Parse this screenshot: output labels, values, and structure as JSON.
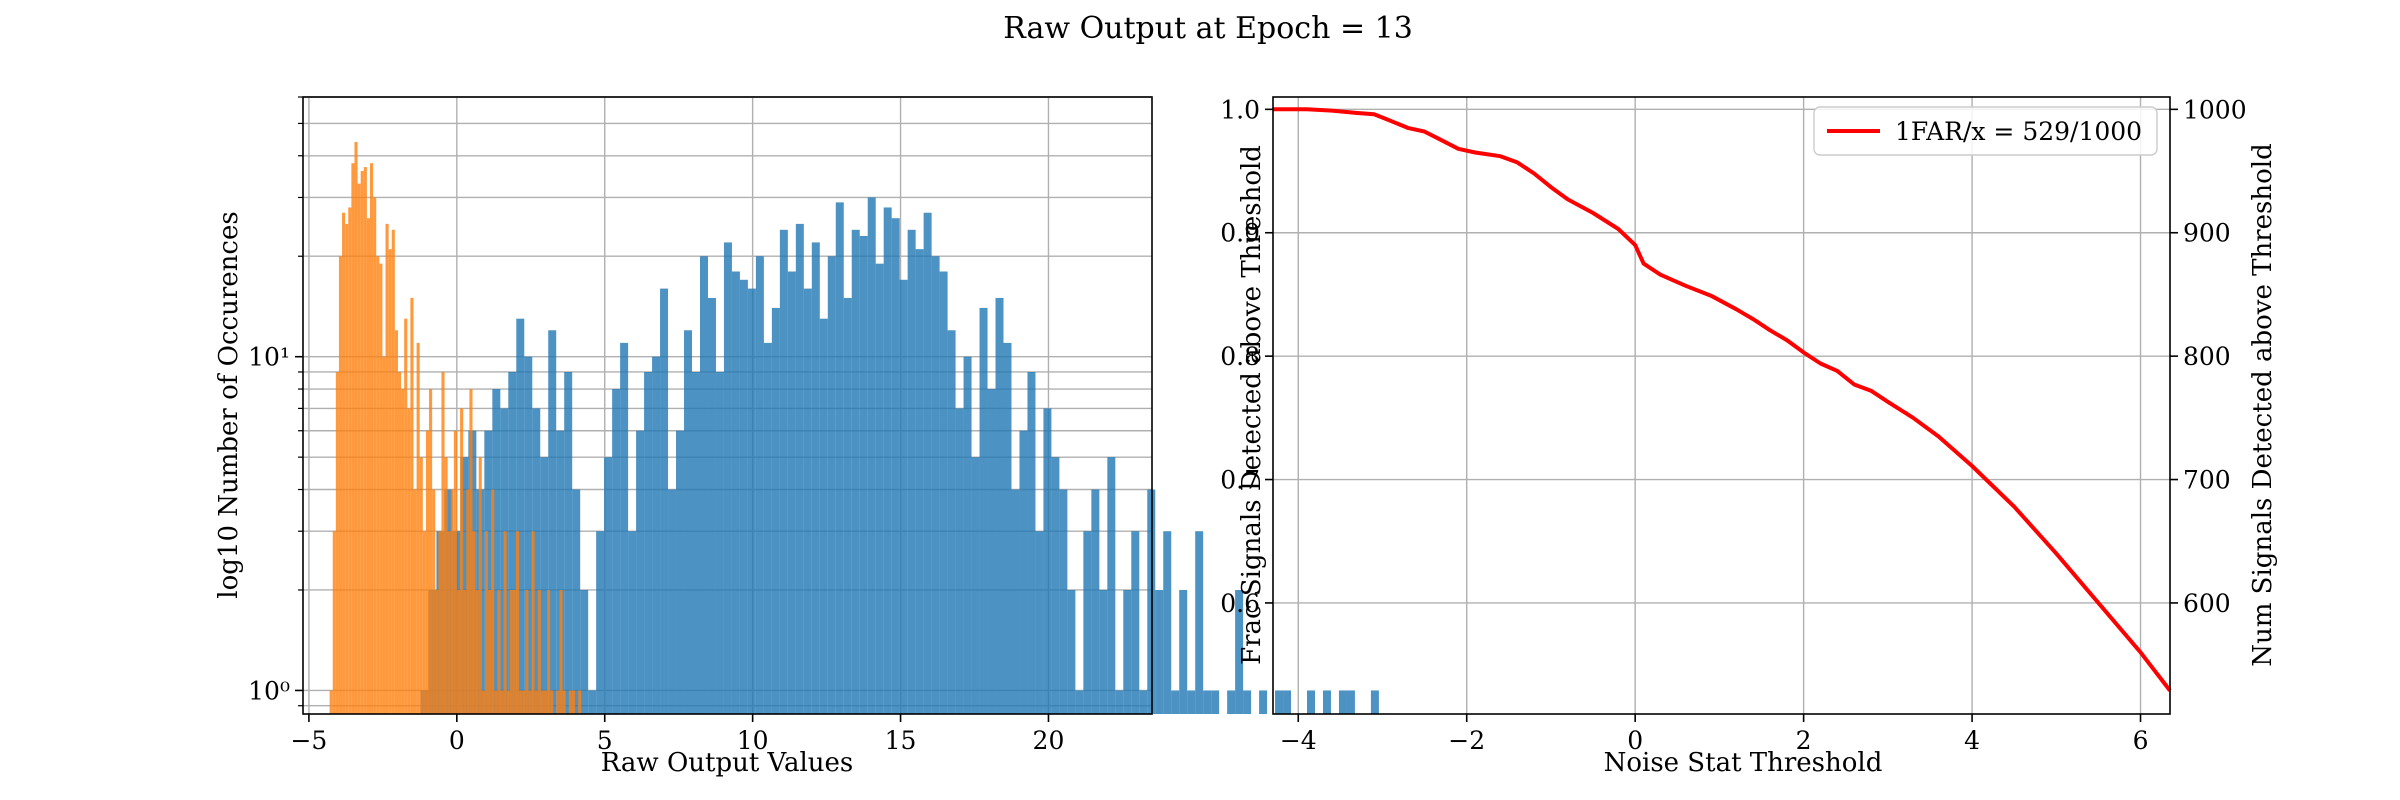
{
  "figure": {
    "title": "Raw Output at Epoch = 13"
  },
  "chart_data": [
    {
      "type": "histogram",
      "xlabel": "Raw Output Values",
      "ylabel": "log10 Number of Occurences",
      "xlim": [
        -5.2,
        23.5
      ],
      "ylim": [
        0.85,
        60
      ],
      "yscale": "log",
      "grid": true,
      "x_ticks": [
        -5,
        0,
        5,
        10,
        15,
        20
      ],
      "x_tick_labels": [
        "−5",
        "0",
        "5",
        "10",
        "15",
        "20"
      ],
      "y_major_ticks": [
        1,
        10
      ],
      "y_tick_labels": [
        "10⁰",
        "10¹"
      ],
      "series": [
        {
          "color": "#1f77b4",
          "alpha": 0.8,
          "bin_start": -4.2,
          "bin_width": 0.27,
          "counts": [
            0,
            0,
            0,
            0,
            0,
            0,
            0,
            0,
            0,
            0,
            0,
            1,
            2,
            3,
            4,
            3,
            5,
            6,
            4,
            6,
            8,
            7,
            9,
            13,
            10,
            7,
            5,
            12,
            6,
            9,
            4,
            2,
            1,
            3,
            5,
            8,
            11,
            3,
            6,
            9,
            10,
            16,
            4,
            6,
            12,
            9,
            20,
            15,
            9,
            22,
            18,
            17,
            16,
            20,
            11,
            14,
            24,
            18,
            25,
            16,
            22,
            13,
            20,
            29,
            15,
            24,
            23,
            30,
            19,
            28,
            26,
            17,
            24,
            21,
            27,
            20,
            18,
            12,
            7,
            10,
            5,
            14,
            8,
            15,
            11,
            4,
            6,
            9,
            3,
            7,
            5,
            4,
            2,
            1,
            3,
            4,
            2,
            5,
            1,
            2,
            3,
            1,
            4,
            2,
            3,
            1,
            2,
            1,
            3,
            1,
            1,
            0,
            1,
            2,
            1,
            0,
            1,
            0,
            1,
            1,
            0,
            0,
            1,
            0,
            1,
            0,
            1,
            1,
            0,
            0,
            1
          ]
        },
        {
          "color": "#ff7f0e",
          "alpha": 0.8,
          "bin_start": -4.3,
          "bin_width": 0.105,
          "counts": [
            1,
            3,
            9,
            20,
            27,
            25,
            28,
            38,
            44,
            33,
            36,
            37,
            26,
            38,
            30,
            20,
            19,
            10,
            25,
            21,
            24,
            12,
            9,
            8,
            13,
            7,
            15,
            4,
            11,
            5,
            3,
            6,
            8,
            4,
            2,
            3,
            9,
            5,
            3,
            4,
            6,
            2,
            7,
            2,
            4,
            8,
            3,
            2,
            5,
            1,
            3,
            2,
            4,
            1,
            2,
            1,
            3,
            1,
            2,
            2,
            3,
            1,
            1,
            2,
            1,
            3,
            1,
            2,
            1,
            1,
            2,
            1,
            0,
            1,
            2,
            1,
            0,
            1,
            1,
            0,
            1
          ]
        }
      ]
    },
    {
      "type": "line",
      "xlabel": "Noise Stat Threshold",
      "ylabel": "Frac Signals Detected above Threshold",
      "ylabel_right": "Num Signals Detected above Threshold",
      "xlim": [
        -4.3,
        6.35
      ],
      "ylim": [
        0.51,
        1.01
      ],
      "ylim_right": [
        510,
        1010
      ],
      "grid": true,
      "legend_position": "top-right",
      "x_ticks": [
        -4,
        -2,
        0,
        2,
        4,
        6
      ],
      "x_tick_labels": [
        "−4",
        "−2",
        "0",
        "2",
        "4",
        "6"
      ],
      "y_ticks": [
        0.6,
        0.7,
        0.8,
        0.9,
        1.0
      ],
      "y_tick_labels": [
        "0.6",
        "0.7",
        "0.8",
        "0.9",
        "1.0"
      ],
      "y_ticks_right": [
        600,
        700,
        800,
        900,
        1000
      ],
      "y_tick_labels_right": [
        "600",
        "700",
        "800",
        "900",
        "1000"
      ],
      "series": [
        {
          "name": "1FAR/x = 529/1000",
          "color": "#ff0000",
          "x": [
            -4.3,
            -3.9,
            -3.6,
            -3.3,
            -3.1,
            -2.95,
            -2.7,
            -2.5,
            -2.3,
            -2.1,
            -1.9,
            -1.6,
            -1.4,
            -1.2,
            -1.0,
            -0.8,
            -0.5,
            -0.2,
            0.0,
            0.1,
            0.3,
            0.6,
            0.9,
            1.2,
            1.4,
            1.6,
            1.8,
            2.0,
            2.2,
            2.4,
            2.6,
            2.8,
            3.0,
            3.3,
            3.6,
            4.0,
            4.5,
            5.0,
            5.5,
            6.0,
            6.35
          ],
          "y": [
            1.0,
            1.0,
            0.999,
            0.997,
            0.996,
            0.992,
            0.985,
            0.982,
            0.975,
            0.968,
            0.965,
            0.962,
            0.957,
            0.948,
            0.937,
            0.927,
            0.916,
            0.903,
            0.89,
            0.875,
            0.866,
            0.857,
            0.849,
            0.838,
            0.83,
            0.821,
            0.813,
            0.803,
            0.794,
            0.788,
            0.777,
            0.772,
            0.763,
            0.75,
            0.735,
            0.711,
            0.678,
            0.64,
            0.6,
            0.56,
            0.529
          ]
        }
      ]
    }
  ]
}
